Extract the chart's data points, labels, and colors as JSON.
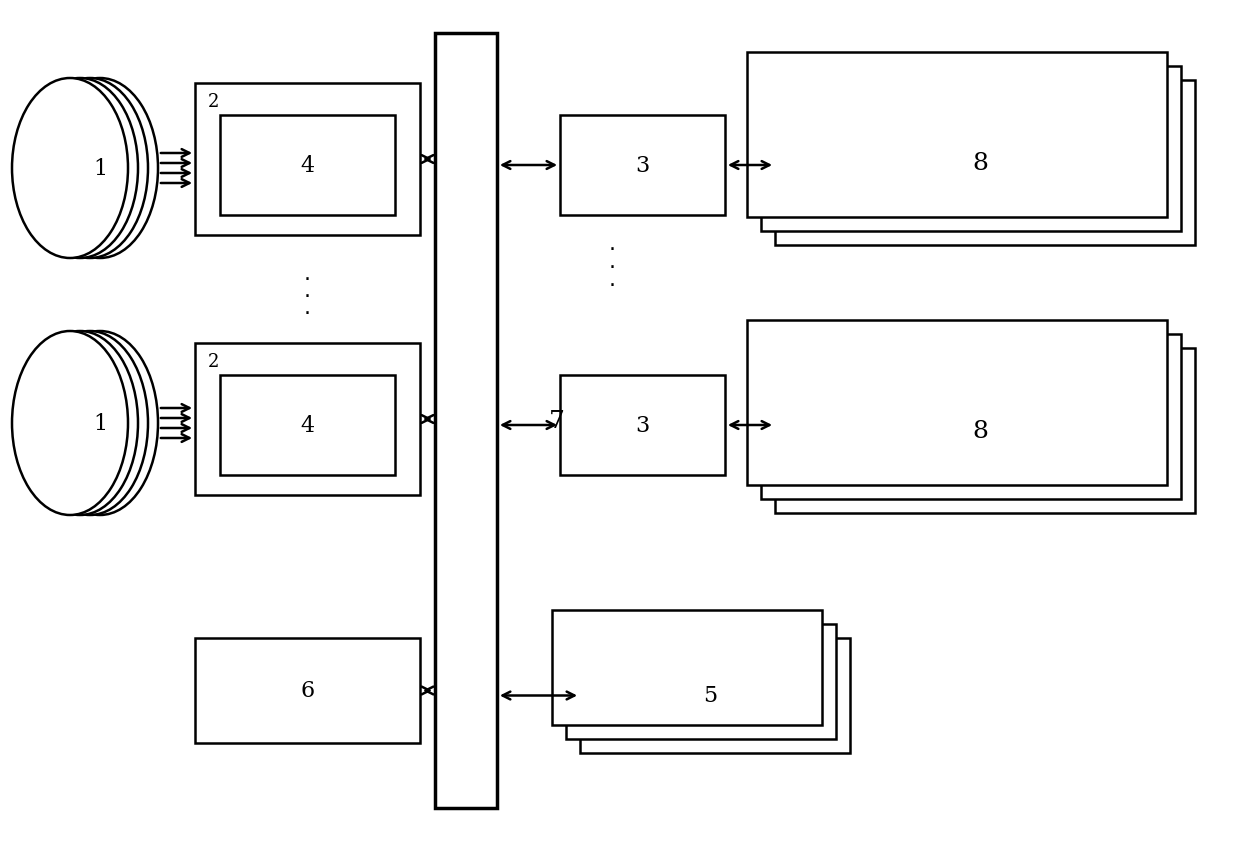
{
  "bg_color": "#ffffff",
  "line_color": "#000000",
  "figsize": [
    12.39,
    8.54
  ],
  "dpi": 100,
  "lw": 1.8
}
